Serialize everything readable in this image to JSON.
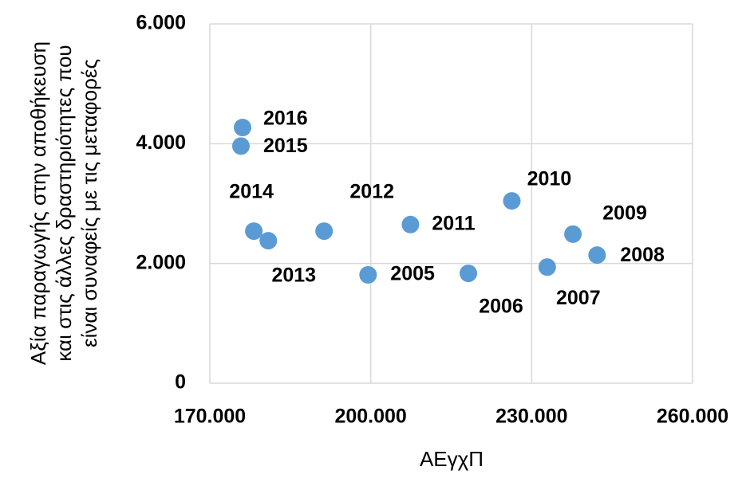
{
  "chart_data": {
    "type": "scatter",
    "xlabel": "ΑΕγχΠ",
    "ylabel": [
      "Αξία παραγωγής στην αποθήκευση",
      "και στις άλλες δραστηριότητες που",
      "είναι συναφείς με τις μεταφορές"
    ],
    "xlim": [
      170000,
      260000
    ],
    "xticks": [
      {
        "value": 170000,
        "label": "170.000"
      },
      {
        "value": 200000,
        "label": "200.000"
      },
      {
        "value": 230000,
        "label": "230.000"
      },
      {
        "value": 260000,
        "label": "260.000"
      }
    ],
    "ylim": [
      0,
      6000
    ],
    "yticks": [
      0,
      {
        "value": 2000,
        "label": "2.000"
      },
      {
        "value": 4000,
        "label": "4.000"
      },
      {
        "value": 6000,
        "label": "6.000"
      }
    ],
    "grid": true,
    "series": [
      {
        "color": "#5b9bd5",
        "labels": [
          "2016",
          "2015",
          "2014",
          "2013",
          "2012",
          "2005",
          "2011",
          "2006",
          "2010",
          "2007",
          "2009",
          "2008"
        ],
        "x": [
          176100,
          175800,
          178200,
          180900,
          191300,
          199500,
          207400,
          218200,
          226300,
          232900,
          237700,
          242200
        ],
        "values": [
          4270,
          3960,
          2540,
          2380,
          2540,
          1810,
          2650,
          1835,
          3045,
          1940,
          2490,
          2140
        ]
      }
    ]
  }
}
